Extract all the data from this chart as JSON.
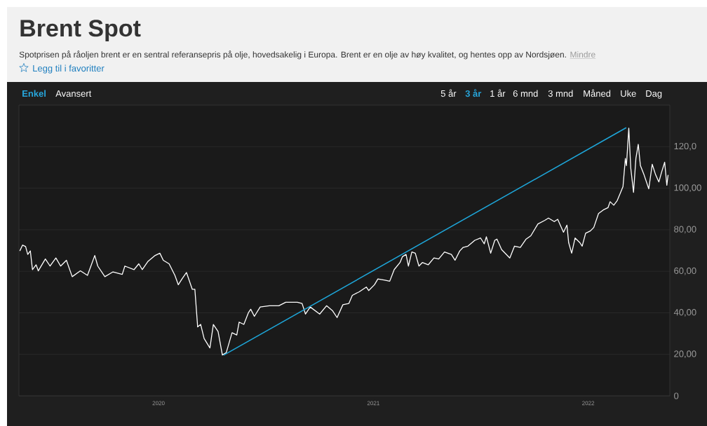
{
  "chart_data": {
    "type": "line",
    "title": "Brent Spot",
    "subtitle": "Spotprisen på råoljen brent er en sentral referansepris på olje, hovedsakelig i Europa. Brent er en olje av høy kvalitet, og hentes opp av Nordsjøen.",
    "annotations": [
      "Mindre",
      "Legg til i favoritter",
      "Enkel",
      "Avansert",
      "5 år",
      "3 år",
      "1 år",
      "6 mnd",
      "3 mnd",
      "Måned",
      "Uke",
      "Dag"
    ],
    "xlim": [
      2019.35,
      2022.38
    ],
    "ylim": [
      0,
      140
    ],
    "xticks": [
      2020,
      2021,
      2022
    ],
    "yticks": [
      0,
      {
        "value": 20,
        "label": "20,00"
      },
      {
        "value": 40,
        "label": "40,00"
      },
      {
        "value": 60,
        "label": "60,00"
      },
      {
        "value": 80,
        "label": "80,00"
      },
      {
        "value": 100,
        "label": "100,00"
      },
      {
        "value": 120,
        "label": "120,0"
      }
    ],
    "grid": "y",
    "series": [
      {
        "color": "#ffffff",
        "x": [
          2019.354,
          2019.367,
          2019.381,
          2019.391,
          2019.403,
          2019.413,
          2019.43,
          2019.44,
          2019.473,
          2019.495,
          2019.522,
          2019.544,
          2019.571,
          2019.598,
          2019.636,
          2019.669,
          2019.685,
          2019.703,
          2019.717,
          2019.75,
          2019.788,
          2019.831,
          2019.843,
          2019.886,
          2019.908,
          2019.924,
          2019.951,
          2019.984,
          2020.006,
          2020.022,
          2020.049,
          2020.076,
          2020.092,
          2020.109,
          2020.13,
          2020.157,
          2020.169,
          2020.182,
          2020.196,
          2020.212,
          2020.239,
          2020.255,
          2020.277,
          2020.297,
          2020.315,
          2020.342,
          2020.364,
          2020.375,
          2020.397,
          2020.418,
          2020.429,
          2020.446,
          2020.473,
          2020.516,
          2020.56,
          2020.592,
          2020.646,
          2020.668,
          2020.684,
          2020.706,
          2020.75,
          2020.782,
          2020.809,
          2020.831,
          2020.858,
          2020.886,
          2020.902,
          2020.934,
          2020.967,
          2020.978,
          2021.005,
          2021.021,
          2021.054,
          2021.076,
          2021.097,
          2021.124,
          2021.135,
          2021.152,
          2021.163,
          2021.179,
          2021.195,
          2021.212,
          2021.228,
          2021.255,
          2021.282,
          2021.304,
          2021.331,
          2021.363,
          2021.38,
          2021.402,
          2021.418,
          2021.44,
          2021.472,
          2021.499,
          2021.516,
          2021.526,
          2021.546,
          2021.565,
          2021.575,
          2021.597,
          2021.635,
          2021.657,
          2021.684,
          2021.711,
          2021.733,
          2021.766,
          2021.798,
          2021.815,
          2021.842,
          2021.858,
          2021.885,
          2021.901,
          2021.909,
          2021.923,
          2021.939,
          2021.961,
          2021.972,
          2021.988,
          2022.01,
          2022.026,
          2022.048,
          2022.07,
          2022.092,
          2022.102,
          2022.119,
          2022.135,
          2022.151,
          2022.162,
          2022.173,
          2022.178,
          2022.189,
          2022.198,
          2022.211,
          2022.222,
          2022.233,
          2022.243,
          2022.26,
          2022.282,
          2022.298,
          2022.314,
          2022.329,
          2022.341,
          2022.356,
          2022.366,
          2022.372
        ],
        "values": [
          69.8,
          72.6,
          71.9,
          68.1,
          69.8,
          60.8,
          63.1,
          60.2,
          65.9,
          62.5,
          66.4,
          62.5,
          65.3,
          57.4,
          60.2,
          58.0,
          62.5,
          67.6,
          62.5,
          57.4,
          59.7,
          58.5,
          62.5,
          60.8,
          63.6,
          60.8,
          64.8,
          67.6,
          68.7,
          65.3,
          63.6,
          58.0,
          53.5,
          56.3,
          59.4,
          51.3,
          51.3,
          33.2,
          34.4,
          27.6,
          23.1,
          34.4,
          31.0,
          19.7,
          20.8,
          30.4,
          29.3,
          35.5,
          34.4,
          40.0,
          41.7,
          38.3,
          42.8,
          43.4,
          43.4,
          45.1,
          45.1,
          44.5,
          39.4,
          42.8,
          39.4,
          43.4,
          41.1,
          37.7,
          43.9,
          44.5,
          48.4,
          50.1,
          52.4,
          50.7,
          53.5,
          56.3,
          55.7,
          55.2,
          60.8,
          64.2,
          67.0,
          68.1,
          62.5,
          69.3,
          68.7,
          62.5,
          64.2,
          63.1,
          66.4,
          65.9,
          69.3,
          68.1,
          65.3,
          69.8,
          71.5,
          72.1,
          74.9,
          76.0,
          73.2,
          76.6,
          68.7,
          74.9,
          75.5,
          70.4,
          66.4,
          72.1,
          71.5,
          75.5,
          77.1,
          82.8,
          84.5,
          85.6,
          83.9,
          85.0,
          78.8,
          82.2,
          73.8,
          68.7,
          76.0,
          73.8,
          72.1,
          78.3,
          79.4,
          81.1,
          87.8,
          89.5,
          90.6,
          93.5,
          91.8,
          94.0,
          98.0,
          100.8,
          114.3,
          110.9,
          128.9,
          109.8,
          98.0,
          114.3,
          121.1,
          110.9,
          106.4,
          99.7,
          111.5,
          106.4,
          103.0,
          107.5,
          112.5,
          101.4,
          106.4
        ]
      },
      {
        "type": "line",
        "color": "#1ea6d9",
        "x": [
          2020.303,
          2022.177
        ],
        "values": [
          19.6,
          129.1
        ]
      }
    ]
  }
}
